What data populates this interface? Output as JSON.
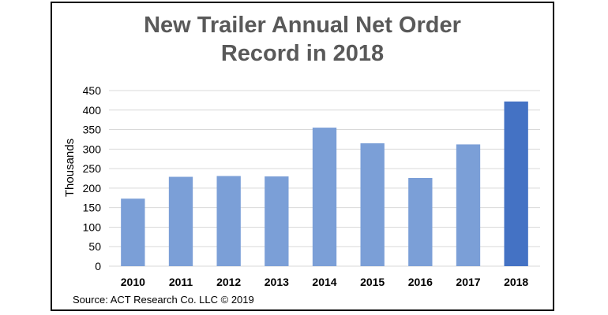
{
  "chart_data": {
    "type": "bar",
    "title_lines": [
      "New Trailer Annual Net Order",
      "Record in 2018"
    ],
    "xlabel": "",
    "ylabel": "Thousands",
    "categories": [
      "2010",
      "2011",
      "2012",
      "2013",
      "2014",
      "2015",
      "2016",
      "2017",
      "2018"
    ],
    "values": [
      173,
      229,
      231,
      230,
      355,
      315,
      226,
      312,
      422
    ],
    "highlight_index": 8,
    "ylim": [
      0,
      450
    ],
    "yticks": [
      "0",
      "50",
      "100",
      "150",
      "200",
      "250",
      "300",
      "350",
      "400",
      "450"
    ],
    "grid": true,
    "legend": "none",
    "colors": {
      "bar": "#7b9fd7",
      "highlight": "#4472c4",
      "grid": "#d9d9d9",
      "title": "#595959"
    }
  },
  "source_note": "Source: ACT Research Co. LLC © 2019"
}
